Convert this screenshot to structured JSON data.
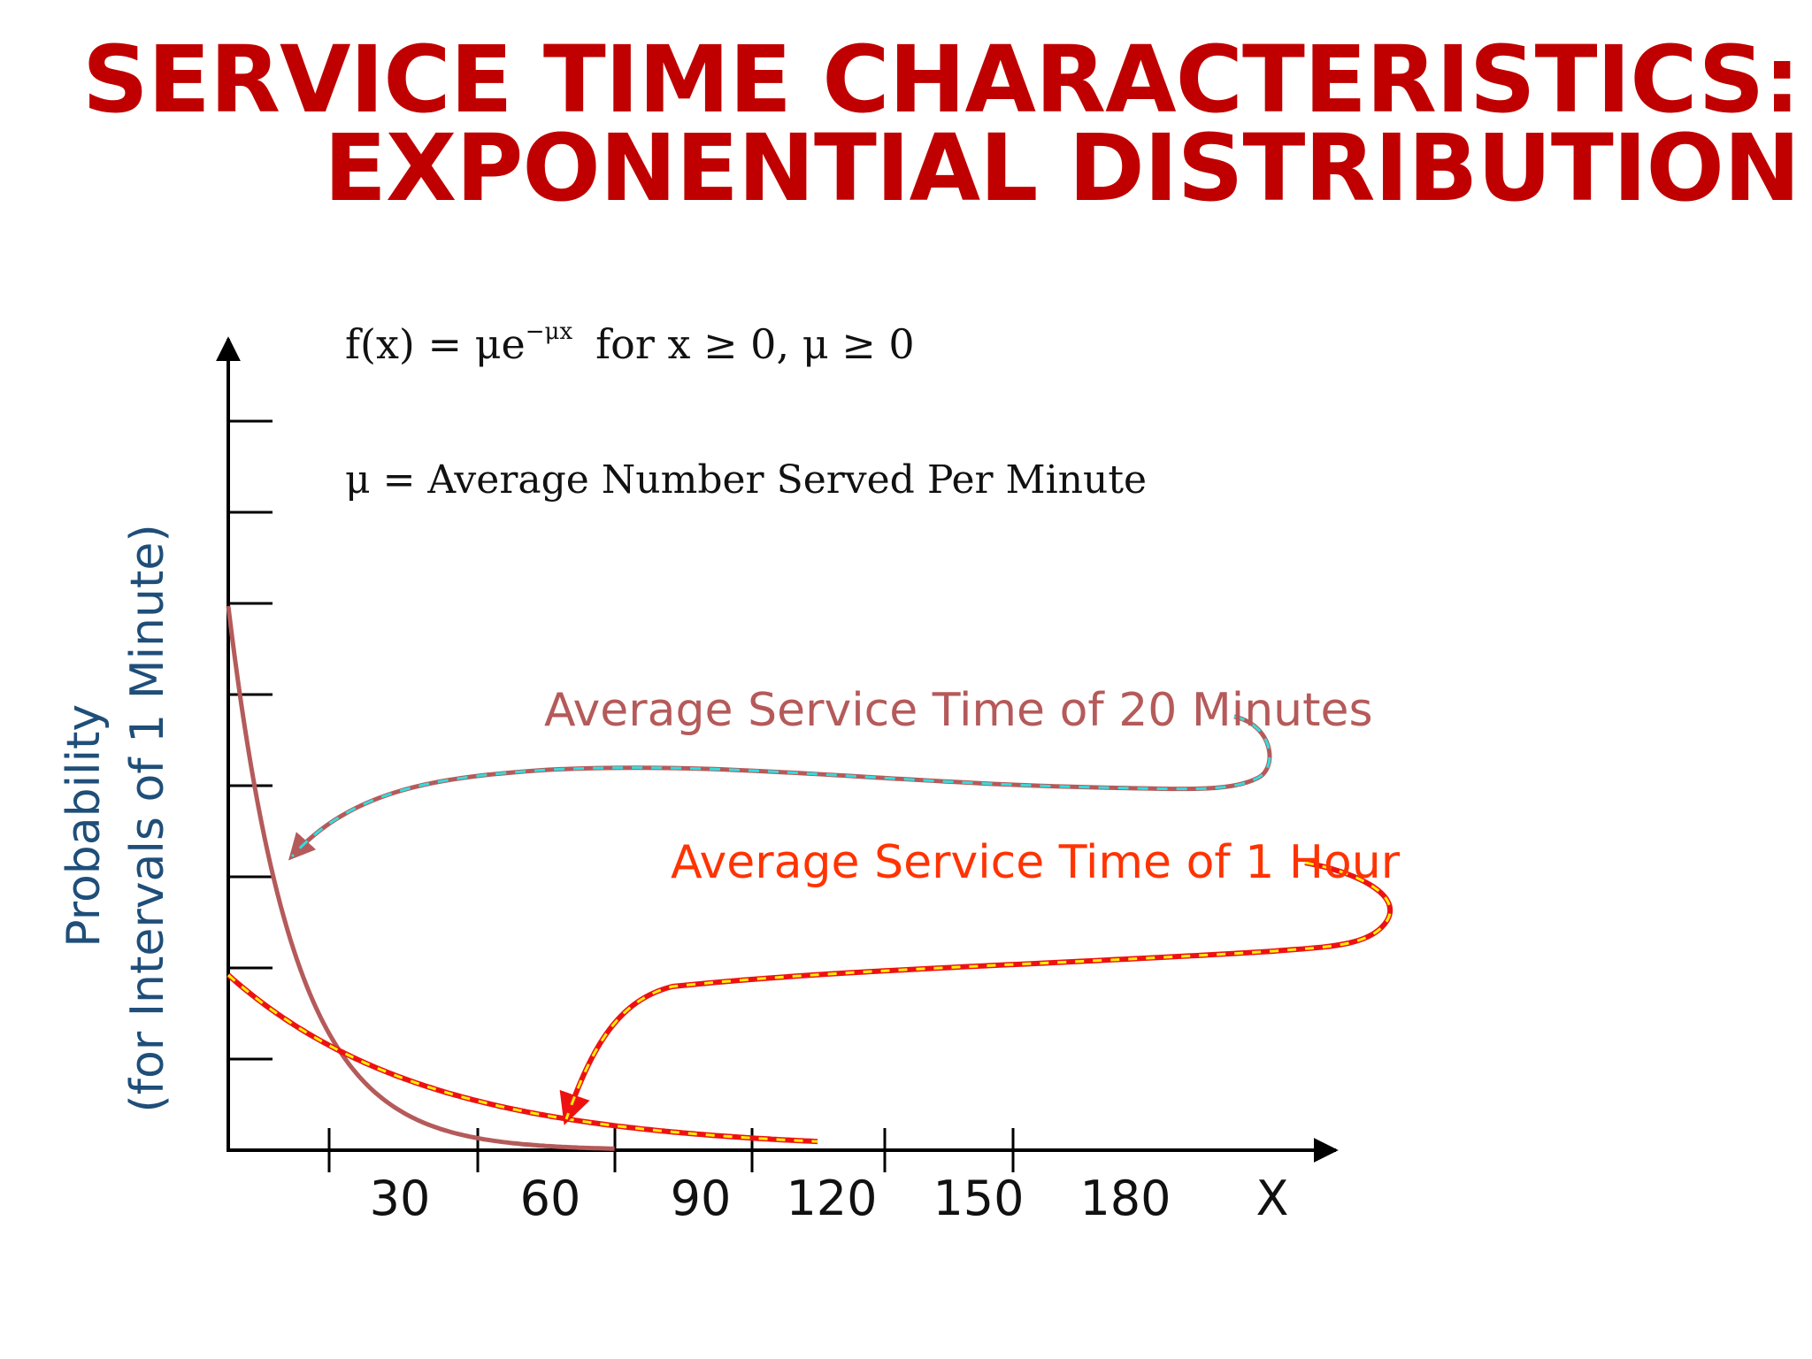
{
  "slide": {
    "title_line1": "SERVICE TIME CHARACTERISTICS:",
    "title_line2": "EXPONENTIAL DISTRIBUTION"
  },
  "colors": {
    "title": "#c00000",
    "axis": "#000000",
    "curve_20min": "#b55a5a",
    "curve_1hour": "#ee1111",
    "curve_1hour_dash": "#ffee00",
    "callout_20min_dash": "#33dddd",
    "label_20min": "#b55a5a",
    "label_1hour": "#ff3300",
    "ylabel": "#1f4e79"
  },
  "formula": {
    "main": "f(x) = μe",
    "exponent": "−μx",
    "condition": "for  x ≥ 0, μ ≥ 0",
    "mu_definition": "μ  = Average Number Served Per Minute"
  },
  "chart_data": {
    "type": "line",
    "title": "",
    "xlabel": "X",
    "ylabel_line1": "Probability",
    "ylabel_line2": "(for Intervals of 1 Minute)",
    "x_ticks": [
      "30",
      "60",
      "90",
      "120",
      "150",
      "180"
    ],
    "y_tick_count": 8,
    "y_ticks_labeled": false,
    "series": [
      {
        "name": "Average Service Time of 20 Minutes",
        "mean_minutes": 20
      },
      {
        "name": "Average Service Time of 1 Hour",
        "mean_minutes": 60
      }
    ],
    "annotations": [
      "Average Service Time of 20 Minutes",
      "Average Service Time of 1 Hour"
    ]
  }
}
